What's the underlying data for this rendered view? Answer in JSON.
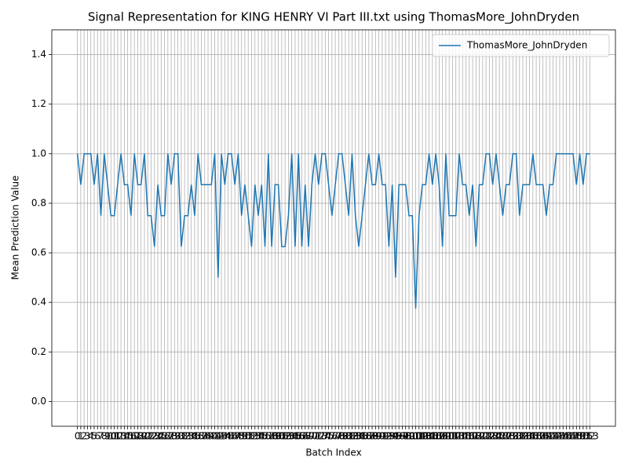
{
  "chart_data": {
    "type": "line",
    "title": "Signal Representation for KING HENRY VI Part III.txt using ThomasMore_JohnDryden",
    "x_label": "Batch Index",
    "y_label": "Mean Prediction Value",
    "x": [
      0,
      1,
      2,
      3,
      4,
      5,
      6,
      7,
      8,
      9,
      10,
      11,
      12,
      13,
      14,
      15,
      16,
      17,
      18,
      19,
      20,
      21,
      22,
      23,
      24,
      25,
      26,
      27,
      28,
      29,
      30,
      31,
      32,
      33,
      34,
      35,
      36,
      37,
      38,
      39,
      40,
      41,
      42,
      43,
      44,
      45,
      46,
      47,
      48,
      49,
      50,
      51,
      52,
      53,
      54,
      55,
      56,
      57,
      58,
      59,
      60,
      61,
      62,
      63,
      64,
      65,
      66,
      67,
      68,
      69,
      70,
      71,
      72,
      73,
      74,
      75,
      76,
      77,
      78,
      79,
      80,
      81,
      82,
      83,
      84,
      85,
      86,
      87,
      88,
      89,
      90,
      91,
      92,
      93,
      94,
      95,
      96,
      97,
      98,
      99,
      100,
      101,
      102,
      103,
      104,
      105,
      106,
      107,
      108,
      109,
      110,
      111,
      112,
      113,
      114,
      115,
      116,
      117,
      118,
      119,
      120,
      121,
      122,
      123,
      124,
      125,
      126,
      127,
      128,
      129,
      130,
      131,
      132,
      133,
      134,
      135,
      136,
      137,
      138,
      139,
      140,
      141,
      142,
      143,
      144,
      145,
      146,
      147,
      148,
      149,
      150,
      151,
      152,
      153
    ],
    "series": [
      {
        "name": "ThomasMore_JohnDryden",
        "color": "#1f77b4",
        "values": [
          1,
          0.875,
          1,
          1,
          1,
          0.875,
          1,
          0.75,
          1,
          0.875,
          0.75,
          0.75,
          0.875,
          1,
          0.875,
          0.875,
          0.75,
          1,
          0.875,
          0.875,
          1,
          0.75,
          0.75,
          0.625,
          0.875,
          0.75,
          0.75,
          1,
          0.875,
          1,
          1,
          0.625,
          0.75,
          0.75,
          0.875,
          0.75,
          1,
          0.875,
          0.875,
          0.875,
          0.875,
          1,
          0.5,
          1,
          0.875,
          1,
          1,
          0.875,
          1,
          0.75,
          0.875,
          0.75,
          0.625,
          0.875,
          0.75,
          0.875,
          0.625,
          1,
          0.625,
          0.875,
          0.875,
          0.625,
          0.625,
          0.75,
          1,
          0.625,
          1,
          0.625,
          0.875,
          0.625,
          0.875,
          1,
          0.875,
          1,
          1,
          0.875,
          0.75,
          0.875,
          1,
          1,
          0.875,
          0.75,
          1,
          0.75,
          0.625,
          0.75,
          0.875,
          1,
          0.875,
          0.875,
          1,
          0.875,
          0.875,
          0.625,
          0.875,
          0.5,
          0.875,
          0.875,
          0.875,
          0.75,
          0.75,
          0.375,
          0.75,
          0.875,
          0.875,
          1,
          0.875,
          1,
          0.875,
          0.625,
          1,
          0.75,
          0.75,
          0.75,
          1,
          0.875,
          0.875,
          0.75,
          0.875,
          0.625,
          0.875,
          0.875,
          1,
          1,
          0.875,
          1,
          0.875,
          0.75,
          0.875,
          0.875,
          1,
          1,
          0.75,
          0.875,
          0.875,
          0.875,
          1,
          0.875,
          0.875,
          0.875,
          0.75,
          0.875,
          0.875,
          1,
          1,
          1,
          1,
          1,
          1,
          0.875,
          1,
          0.875,
          1,
          1
        ]
      }
    ],
    "xlim": [
      -7.65,
      160.65
    ],
    "xticks": [
      0,
      1,
      2,
      3,
      4,
      5,
      6,
      7,
      8,
      9,
      10,
      11,
      12,
      13,
      14,
      15,
      16,
      17,
      18,
      19,
      20,
      21,
      22,
      23,
      24,
      25,
      26,
      27,
      28,
      29,
      30,
      31,
      32,
      33,
      34,
      35,
      36,
      37,
      38,
      39,
      40,
      41,
      42,
      43,
      44,
      45,
      46,
      47,
      48,
      49,
      50,
      51,
      52,
      53,
      54,
      55,
      56,
      57,
      58,
      59,
      60,
      61,
      62,
      63,
      64,
      65,
      66,
      67,
      68,
      69,
      70,
      71,
      72,
      73,
      74,
      75,
      76,
      77,
      78,
      79,
      80,
      81,
      82,
      83,
      84,
      85,
      86,
      87,
      88,
      89,
      90,
      91,
      92,
      93,
      94,
      95,
      96,
      97,
      98,
      99,
      100,
      101,
      102,
      103,
      104,
      105,
      106,
      107,
      108,
      109,
      110,
      111,
      112,
      113,
      114,
      115,
      116,
      117,
      118,
      119,
      120,
      121,
      122,
      123,
      124,
      125,
      126,
      127,
      128,
      129,
      130,
      131,
      132,
      133,
      134,
      135,
      136,
      137,
      138,
      139,
      140,
      141,
      142,
      143,
      144,
      145,
      146,
      147,
      148,
      149,
      150,
      151,
      152,
      153
    ],
    "ylim": [
      -0.1,
      1.5
    ],
    "yticks": [
      {
        "value": 0,
        "label": "0.0"
      },
      0.2,
      0.4,
      0.6,
      0.8,
      {
        "value": 1,
        "label": "1.0"
      },
      1.2,
      1.4
    ],
    "grid": true,
    "legend": "upper right"
  }
}
